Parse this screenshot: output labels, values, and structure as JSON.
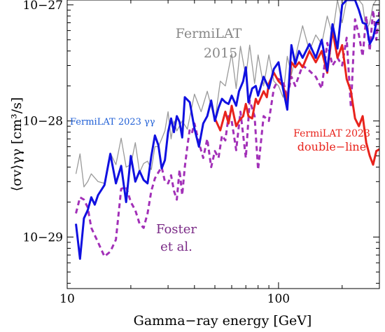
{
  "chart_data": {
    "type": "line",
    "xlabel": "Gamma−ray energy [GeV]",
    "ylabel": "⟨σv⟩γγ [cm³/s]",
    "xscale": "log",
    "yscale": "log",
    "xlim": [
      10,
      300
    ],
    "ylim": [
      3.6e-30,
      1.1e-27
    ],
    "grid": false,
    "x_ticks": [
      10,
      100
    ],
    "x_tick_labels": [
      "10",
      "100"
    ],
    "y_ticks": [
      1e-29,
      1e-28,
      1e-27
    ],
    "y_tick_labels": [
      "10−29",
      "10−28",
      "10−27"
    ],
    "annotations": [
      {
        "text": "FermiLAT",
        "color": "#888888"
      },
      {
        "text": "2015",
        "color": "#888888"
      },
      {
        "text": "FermiLAT 2023 γγ",
        "color": "#1f5fd6"
      },
      {
        "text": "FermiLAT 2023",
        "color": "#e8231c"
      },
      {
        "text": "double−line",
        "color": "#e8231c"
      },
      {
        "text": "Foster",
        "color": "#7a2a86"
      },
      {
        "text": "et al.",
        "color": "#7a2a86"
      }
    ],
    "series": [
      {
        "color": "#9a9a9a",
        "style": "solid",
        "x": [
          11,
          11.5,
          12,
          12.5,
          13,
          14,
          15,
          16,
          17,
          18,
          19,
          20,
          21,
          22,
          23,
          24,
          25,
          26,
          27,
          28,
          29,
          30,
          31,
          32,
          33,
          35,
          37,
          40,
          43,
          46,
          50,
          53,
          56,
          60,
          63,
          66,
          70,
          73,
          77,
          80,
          85,
          90,
          95,
          100,
          105,
          110,
          115,
          120,
          130,
          140,
          150,
          160,
          170,
          180,
          190,
          200,
          210,
          220,
          230,
          240,
          250,
          260,
          270,
          280,
          290,
          300
        ],
        "y": [
          3.5e-29,
          5.2e-29,
          2.7e-29,
          3e-29,
          3.5e-29,
          3e-29,
          2.9e-29,
          5.3e-29,
          4.2e-29,
          7.1e-29,
          4e-29,
          4.2e-29,
          6.5e-29,
          3.6e-29,
          4.3e-29,
          4.5e-29,
          3.8e-29,
          6e-29,
          6e-29,
          7e-29,
          8.2e-29,
          1.2e-28,
          7e-29,
          1e-28,
          8.2e-29,
          1e-28,
          8.5e-29,
          1.7e-28,
          1.2e-28,
          1.8e-28,
          1e-28,
          2.2e-28,
          2e-28,
          3.8e-28,
          1.9e-28,
          4.4e-28,
          2.4e-28,
          4.5e-28,
          2.1e-28,
          3.7e-28,
          2e-28,
          3.7e-28,
          2.2e-28,
          2e-28,
          1.6e-28,
          3.6e-28,
          2.5e-28,
          3.5e-28,
          6.6e-28,
          4e-28,
          5.5e-28,
          4.6e-28,
          8e-28,
          5.5e-28,
          1.1e-27,
          7e-28,
          1.1e-27,
          1.1e-27,
          1.1e-27,
          1.1e-27,
          1e-27,
          6e-28,
          7e-28,
          1e-27,
          1.1e-27,
          1.1e-27
        ]
      },
      {
        "color": "#a230b8",
        "style": "dashed",
        "x": [
          11,
          11.5,
          12,
          12.5,
          13,
          14,
          15,
          16,
          17,
          18,
          19,
          20,
          21,
          22,
          23,
          24,
          25,
          26,
          27,
          28,
          29,
          30,
          31,
          32,
          33,
          34,
          35,
          36,
          37,
          38,
          39,
          40,
          42,
          44,
          46,
          48,
          50,
          52,
          54,
          56,
          58,
          60,
          63,
          66,
          70,
          73,
          77,
          80,
          85,
          90,
          95,
          100,
          105,
          110,
          115,
          120,
          130,
          140,
          150,
          160,
          170,
          180,
          190,
          200,
          210,
          220,
          230,
          240,
          250,
          260,
          270,
          280,
          290,
          300
        ],
        "y": [
          1.6e-29,
          2.2e-29,
          2.1e-29,
          1.8e-29,
          1.2e-29,
          9e-30,
          6.8e-30,
          7.5e-30,
          9.5e-30,
          2.6e-29,
          2.7e-29,
          2e-29,
          1.7e-29,
          1.3e-29,
          1.2e-29,
          1.6e-29,
          2.5e-29,
          3.2e-29,
          3.6e-29,
          4e-29,
          3e-29,
          2.9e-29,
          3.4e-29,
          2.5e-29,
          2.1e-29,
          3.8e-29,
          2.3e-29,
          4e-29,
          6e-29,
          8.5e-29,
          8e-29,
          9.5e-29,
          6.5e-29,
          4.8e-29,
          7e-29,
          4e-29,
          5.5e-29,
          4.8e-29,
          7.5e-29,
          6.8e-29,
          1.1e-28,
          1e-28,
          5.6e-29,
          1.2e-28,
          4.8e-29,
          1.5e-28,
          1.1e-28,
          3.8e-29,
          1.1e-28,
          1e-28,
          1.9e-28,
          2.3e-28,
          2.2e-28,
          1.6e-28,
          2.4e-28,
          2e-28,
          3e-28,
          2.7e-28,
          2.4e-28,
          1.9e-28,
          4.7e-28,
          3e-28,
          3.5e-28,
          3e-28,
          5.2e-28,
          1.3e-28,
          7.5e-28,
          5.5e-28,
          3.6e-28,
          8e-28,
          4e-28,
          9e-28,
          5e-28,
          9e-28
        ]
      },
      {
        "color": "#e8231c",
        "style": "solid",
        "x": [
          50,
          53,
          56,
          58,
          60,
          63,
          65,
          68,
          70,
          72,
          75,
          78,
          80,
          85,
          88,
          90,
          95,
          100,
          105,
          110,
          115,
          120,
          125,
          130,
          140,
          150,
          160,
          170,
          180,
          190,
          200,
          210,
          220,
          230,
          240,
          250,
          260,
          270,
          280,
          290,
          300
        ],
        "y": [
          1.05e-28,
          8.3e-29,
          1.2e-28,
          9.5e-29,
          1.35e-28,
          9e-29,
          1e-28,
          1.1e-28,
          1.4e-28,
          1.1e-28,
          1.05e-28,
          1.55e-28,
          1.4e-28,
          1.8e-28,
          1.6e-28,
          2.1e-28,
          2.6e-28,
          2.2e-28,
          2e-28,
          1.5e-28,
          3.2e-28,
          2.9e-28,
          3.2e-28,
          2.9e-28,
          4e-28,
          3.2e-28,
          4e-28,
          2.6e-28,
          6e-28,
          3.5e-28,
          4.5e-28,
          2.3e-28,
          1.8e-28,
          1.05e-28,
          9e-29,
          1.1e-28,
          6.5e-29,
          5e-29,
          4.2e-29,
          5.5e-29,
          5.7e-29
        ]
      },
      {
        "color": "#1010e0",
        "style": "solid",
        "x": [
          11,
          11.5,
          12,
          12.5,
          13,
          13.5,
          14,
          15,
          16,
          17,
          18,
          19,
          20,
          21,
          22,
          23,
          24,
          25,
          26,
          27,
          28,
          29,
          30,
          31,
          32,
          33,
          34,
          35,
          36,
          38,
          40,
          42,
          44,
          46,
          48,
          50,
          52,
          54,
          56,
          58,
          60,
          63,
          65,
          68,
          70,
          72,
          75,
          78,
          80,
          85,
          90,
          95,
          100,
          105,
          110,
          115,
          120,
          125,
          130,
          140,
          150,
          160,
          170,
          180,
          190,
          200,
          210,
          220,
          230,
          240,
          250,
          260,
          270,
          280,
          290,
          300
        ],
        "y": [
          1.3e-29,
          6.5e-30,
          1.45e-29,
          1.7e-29,
          2.2e-29,
          1.9e-29,
          2.3e-29,
          2.8e-29,
          5.2e-29,
          2.9e-29,
          4.1e-29,
          2e-29,
          5e-29,
          3e-29,
          3.7e-29,
          3.1e-29,
          2.9e-29,
          5e-29,
          7.5e-29,
          6.2e-29,
          3.9e-29,
          4.6e-29,
          8e-29,
          1.05e-28,
          8e-29,
          1.1e-28,
          9.8e-29,
          7.2e-29,
          1.6e-28,
          1.45e-28,
          8.6e-29,
          6e-29,
          9.5e-29,
          1.1e-28,
          1.5e-28,
          1e-28,
          1.3e-28,
          1.55e-28,
          1.45e-28,
          1.4e-28,
          1.65e-28,
          1.35e-28,
          1.8e-28,
          2.2e-28,
          2.9e-28,
          1.45e-28,
          1.9e-28,
          2e-28,
          1.65e-28,
          2.4e-28,
          1.9e-28,
          2.8e-28,
          3.2e-28,
          1.9e-28,
          1.25e-28,
          4.5e-28,
          3.1e-28,
          4e-28,
          3.5e-28,
          4.6e-28,
          3.5e-28,
          5e-28,
          2.7e-28,
          6.8e-28,
          4.2e-28,
          1e-27,
          1.1e-27,
          1.1e-27,
          1.1e-27,
          9e-28,
          7e-28,
          6.8e-28,
          4.6e-28,
          5.2e-28,
          7e-28,
          7.5e-28
        ]
      }
    ]
  }
}
